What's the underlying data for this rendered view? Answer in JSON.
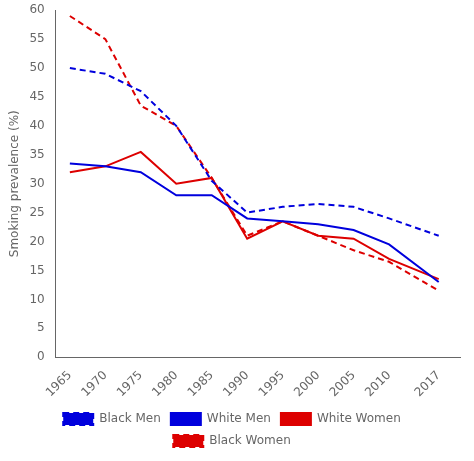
{
  "chart_data": {
    "type": "line",
    "x": [
      1965,
      1970,
      1975,
      1980,
      1985,
      1990,
      1995,
      2000,
      2005,
      2010,
      2017
    ],
    "series": [
      {
        "name": "Black Men",
        "color": "#0000dd",
        "line_style": "dashed",
        "values": [
          50.0,
          49.0,
          46.0,
          40.0,
          30.5,
          25.0,
          26.0,
          26.5,
          26.0,
          24.0,
          21.0
        ]
      },
      {
        "name": "White Men",
        "color": "#0000dd",
        "line_style": "solid",
        "values": [
          33.5,
          33.0,
          32.0,
          28.0,
          28.0,
          24.0,
          23.5,
          23.0,
          22.0,
          19.5,
          13.0
        ]
      },
      {
        "name": "White Women",
        "color": "#dd0000",
        "line_style": "solid",
        "values": [
          32.0,
          33.0,
          35.5,
          30.0,
          31.0,
          20.5,
          23.5,
          21.0,
          20.5,
          17.0,
          13.5
        ]
      },
      {
        "name": "Black Women",
        "color": "#dd0000",
        "line_style": "dashed",
        "values": [
          59.0,
          55.0,
          43.5,
          40.0,
          31.0,
          21.0,
          23.5,
          21.0,
          18.5,
          16.5,
          11.5
        ]
      }
    ],
    "ylabel": "Smoking prevalence (%)",
    "ylim": [
      0,
      60
    ],
    "yticks": [
      0,
      5,
      10,
      15,
      20,
      25,
      30,
      35,
      40,
      45,
      50,
      55,
      60
    ],
    "xlim": [
      1963,
      2020
    ],
    "xticks": [
      1965,
      1970,
      1975,
      1980,
      1985,
      1990,
      1995,
      2000,
      2005,
      2010,
      2017
    ],
    "grid": false,
    "legend": "bottom"
  }
}
